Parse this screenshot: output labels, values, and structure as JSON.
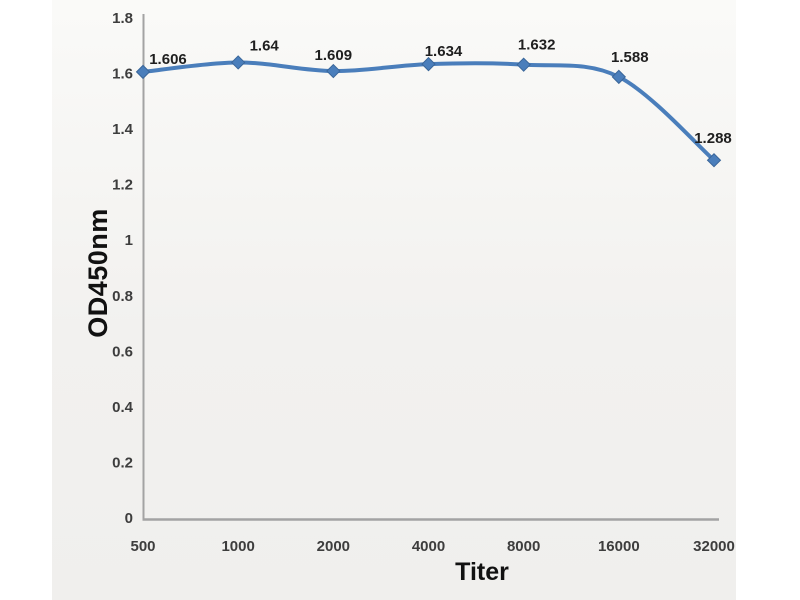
{
  "page": {
    "background": "#ffffff",
    "photo_background": "#f2f1ef"
  },
  "chart_data": {
    "type": "line",
    "title": "",
    "xlabel": "Titer",
    "ylabel": "OD450nm",
    "categories": [
      "500",
      "1000",
      "2000",
      "4000",
      "8000",
      "16000",
      "32000"
    ],
    "series": [
      {
        "name": "OD450nm",
        "values": [
          1.606,
          1.64,
          1.609,
          1.634,
          1.632,
          1.588,
          1.288
        ],
        "point_labels": [
          "1.606",
          "1.64",
          "1.609",
          "1.634",
          "1.632",
          "1.588",
          "1.288"
        ]
      }
    ],
    "ylim": [
      0,
      1.8
    ],
    "ytick_labels": [
      "0",
      "0.2",
      "0.4",
      "0.6",
      "0.8",
      "1",
      "1.2",
      "1.4",
      "1.6",
      "1.8"
    ],
    "grid": "off",
    "legend": "none",
    "marker": "diamond",
    "line_color": "#4a7ebb",
    "marker_edge_color": "#3a6699",
    "axis_color": "#a3a3a3",
    "tick_label_color": "#3d3d3d",
    "point_label_color": "#1f1f1f"
  }
}
